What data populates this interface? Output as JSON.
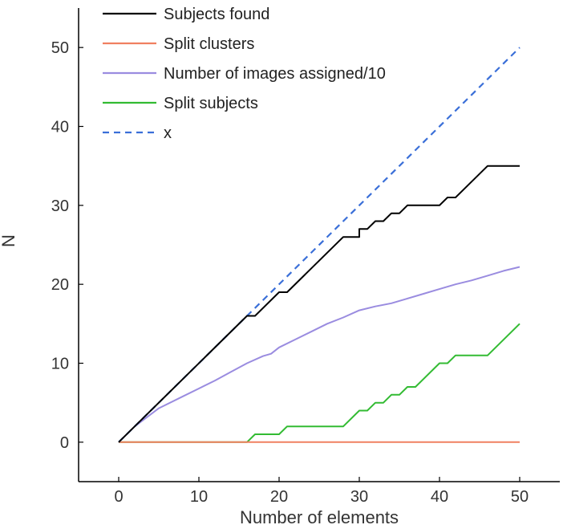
{
  "chart_data": {
    "type": "line",
    "title": "",
    "xlabel": "Number of elements",
    "ylabel": "N",
    "xlim": [
      -5,
      55
    ],
    "ylim": [
      -5,
      55
    ],
    "xticks": [
      0,
      10,
      20,
      30,
      40,
      50
    ],
    "yticks": [
      0,
      10,
      20,
      30,
      40,
      50
    ],
    "grid": false,
    "legend_position": "top-left",
    "series": [
      {
        "name": "Subjects found",
        "color": "#000000",
        "dash": "solid",
        "x": [
          0,
          16,
          16,
          17,
          20,
          20,
          21,
          28,
          28,
          30,
          30,
          31,
          32,
          33,
          34,
          35,
          36,
          37,
          40,
          41,
          41,
          42,
          43,
          46,
          50
        ],
        "y": [
          0,
          16,
          16,
          16,
          19,
          19,
          19,
          26,
          26,
          26,
          27,
          27,
          28,
          28,
          29,
          29,
          30,
          30,
          30,
          31,
          31,
          31,
          32,
          35,
          35
        ]
      },
      {
        "name": "Split clusters",
        "color": "#f08060",
        "dash": "solid",
        "x": [
          0,
          50
        ],
        "y": [
          0,
          0
        ]
      },
      {
        "name": "Number of images assigned/10",
        "color": "#9a8ce0",
        "dash": "solid",
        "x": [
          0,
          2,
          5,
          8,
          10,
          12,
          14,
          16,
          18,
          19,
          20,
          22,
          24,
          26,
          28,
          30,
          32,
          34,
          36,
          38,
          40,
          42,
          44,
          46,
          48,
          50
        ],
        "y": [
          0,
          2,
          4.3,
          5.8,
          6.8,
          7.8,
          8.9,
          10,
          10.9,
          11.2,
          12,
          13,
          14,
          15,
          15.8,
          16.7,
          17.2,
          17.6,
          18.2,
          18.8,
          19.4,
          20,
          20.5,
          21.1,
          21.7,
          22.2
        ]
      },
      {
        "name": "Split subjects",
        "color": "#33bb33",
        "dash": "solid",
        "x": [
          0,
          16,
          17,
          20,
          21,
          28,
          30,
          31,
          32,
          33,
          34,
          35,
          36,
          37,
          38,
          40,
          41,
          42,
          44,
          46,
          50
        ],
        "y": [
          0,
          0,
          1,
          1,
          2,
          2,
          4,
          4,
          5,
          5,
          6,
          6,
          7,
          7,
          8,
          10,
          10,
          11,
          11,
          11,
          15
        ]
      },
      {
        "name": "x",
        "color": "#3a6fd8",
        "dash": "dashed",
        "x": [
          0,
          50
        ],
        "y": [
          0,
          50
        ]
      }
    ]
  }
}
